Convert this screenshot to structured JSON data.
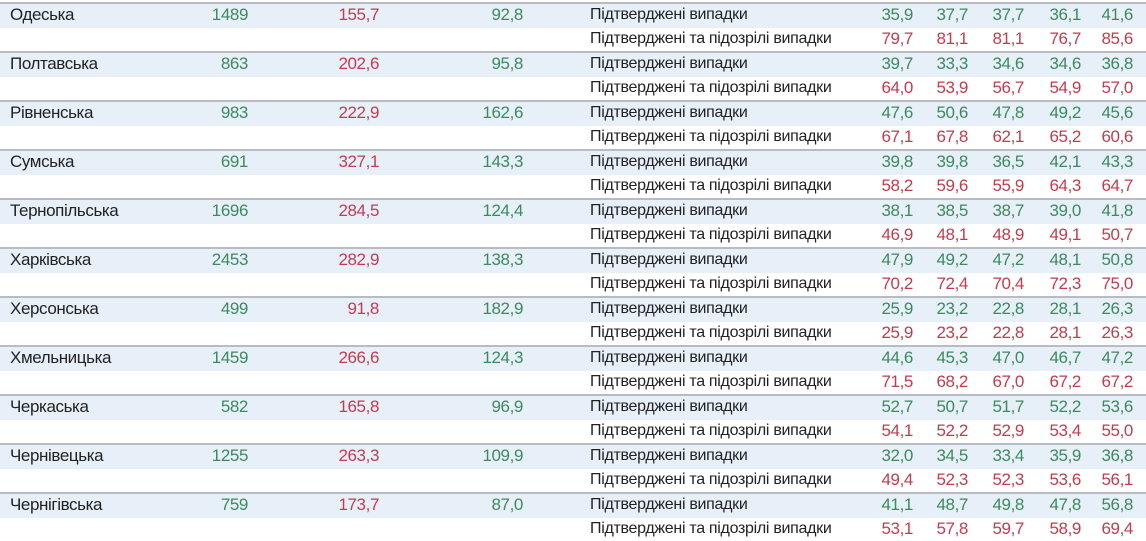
{
  "colors": {
    "confirmed": "#3d8a5c",
    "suspected": "#c23c4e",
    "row_highlight": "#e7f0f9"
  },
  "labels": {
    "confirmed": "Підтверджені випадки",
    "confirmed_suspected": "Підтверджені та підозрілі випадки"
  },
  "rows": [
    {
      "region": "Одеська",
      "c1": "1489",
      "c2": "155,7",
      "c3": "92,8",
      "confirmed": [
        "35,9",
        "37,7",
        "37,7",
        "36,1",
        "41,6"
      ],
      "suspected": [
        "79,7",
        "81,1",
        "81,1",
        "76,7",
        "85,6"
      ]
    },
    {
      "region": "Полтавська",
      "c1": "863",
      "c2": "202,6",
      "c3": "95,8",
      "confirmed": [
        "39,7",
        "33,3",
        "34,6",
        "34,6",
        "36,8"
      ],
      "suspected": [
        "64,0",
        "53,9",
        "56,7",
        "54,9",
        "57,0"
      ]
    },
    {
      "region": "Рівненська",
      "c1": "983",
      "c2": "222,9",
      "c3": "162,6",
      "confirmed": [
        "47,6",
        "50,6",
        "47,8",
        "49,2",
        "45,6"
      ],
      "suspected": [
        "67,1",
        "67,8",
        "62,1",
        "65,2",
        "60,6"
      ]
    },
    {
      "region": "Сумська",
      "c1": "691",
      "c2": "327,1",
      "c3": "143,3",
      "confirmed": [
        "39,8",
        "39,8",
        "36,5",
        "42,1",
        "43,3"
      ],
      "suspected": [
        "58,2",
        "59,6",
        "55,9",
        "64,3",
        "64,7"
      ]
    },
    {
      "region": "Тернопільська",
      "c1": "1696",
      "c2": "284,5",
      "c3": "124,4",
      "confirmed": [
        "38,1",
        "38,5",
        "38,7",
        "39,0",
        "41,8"
      ],
      "suspected": [
        "46,9",
        "48,1",
        "48,9",
        "49,1",
        "50,7"
      ]
    },
    {
      "region": "Харківська",
      "c1": "2453",
      "c2": "282,9",
      "c3": "138,3",
      "confirmed": [
        "47,9",
        "49,2",
        "47,2",
        "48,1",
        "50,8"
      ],
      "suspected": [
        "70,2",
        "72,4",
        "70,4",
        "72,3",
        "75,0"
      ]
    },
    {
      "region": "Херсонська",
      "c1": "499",
      "c2": "91,8",
      "c3": "182,9",
      "confirmed": [
        "25,9",
        "23,2",
        "22,8",
        "28,1",
        "26,3"
      ],
      "suspected": [
        "25,9",
        "23,2",
        "22,8",
        "28,1",
        "26,3"
      ]
    },
    {
      "region": "Хмельницька",
      "c1": "1459",
      "c2": "266,6",
      "c3": "124,3",
      "confirmed": [
        "44,6",
        "45,3",
        "47,0",
        "46,7",
        "47,2"
      ],
      "suspected": [
        "71,5",
        "68,2",
        "67,0",
        "67,2",
        "67,2"
      ]
    },
    {
      "region": "Черкаська",
      "c1": "582",
      "c2": "165,8",
      "c3": "96,9",
      "confirmed": [
        "52,7",
        "50,7",
        "51,7",
        "52,2",
        "53,6"
      ],
      "suspected": [
        "54,1",
        "52,2",
        "52,9",
        "53,4",
        "55,0"
      ]
    },
    {
      "region": "Чернівецька",
      "c1": "1255",
      "c2": "263,3",
      "c3": "109,9",
      "confirmed": [
        "32,0",
        "34,5",
        "33,4",
        "35,9",
        "36,8"
      ],
      "suspected": [
        "49,4",
        "52,3",
        "52,3",
        "53,6",
        "56,1"
      ]
    },
    {
      "region": "Чернігівська",
      "c1": "759",
      "c2": "173,7",
      "c3": "87,0",
      "confirmed": [
        "41,1",
        "48,7",
        "49,8",
        "47,8",
        "56,8"
      ],
      "suspected": [
        "53,1",
        "57,8",
        "59,7",
        "58,9",
        "69,4"
      ]
    }
  ]
}
